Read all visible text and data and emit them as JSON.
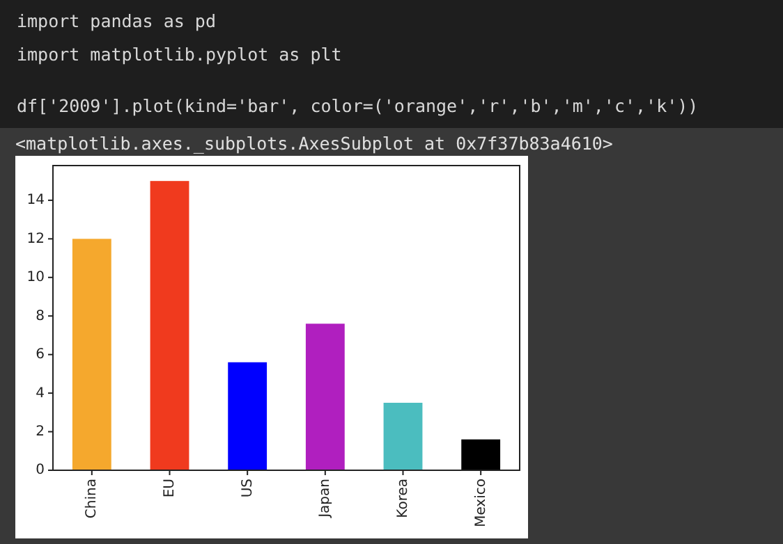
{
  "chart_data": {
    "type": "bar",
    "categories": [
      "China",
      "EU",
      "US",
      "Japan",
      "Korea",
      "Mexico"
    ],
    "values": [
      12,
      15,
      5.6,
      7.6,
      3.5,
      1.6
    ],
    "colors": [
      "#f5a82d",
      "#f03a1e",
      "#0000ff",
      "#b01fbf",
      "#4bbdbf",
      "#000000"
    ],
    "ylim": [
      0,
      15.8
    ],
    "yticks": [
      0,
      2,
      4,
      6,
      8,
      10,
      12,
      14
    ],
    "grid": false,
    "annotations": [
      "import pandas as pd",
      "import matplotlib.pyplot as plt",
      "df['2009'].plot(kind='bar', color=('orange','r','b','m','c','k'))",
      "<matplotlib.axes._subplots.AxesSubplot at 0x7f37b83a4610>"
    ]
  }
}
